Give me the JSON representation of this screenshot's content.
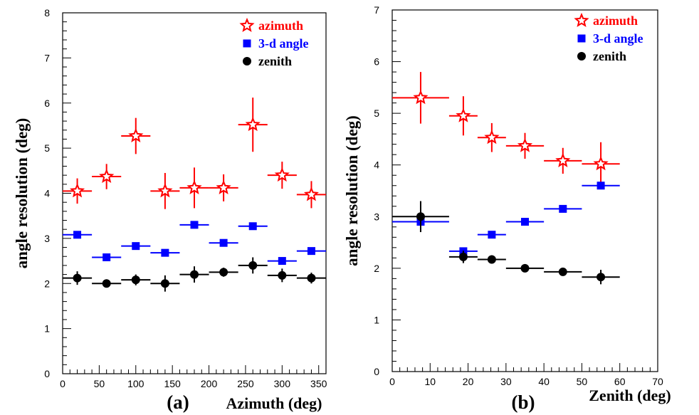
{
  "chart_data": [
    {
      "type": "scatter",
      "panel_label": "(a)",
      "xlabel": "Azimuth (deg)",
      "ylabel": "angle resolution (deg)",
      "xlim": [
        0,
        360
      ],
      "ylim": [
        0,
        8
      ],
      "xticks": [
        0,
        50,
        100,
        150,
        200,
        250,
        300,
        350
      ],
      "yticks": [
        0,
        1,
        2,
        3,
        4,
        5,
        6,
        7,
        8
      ],
      "legend_position": "top-right",
      "series": [
        {
          "name": "azimuth",
          "marker": "star",
          "color": "#ff0000",
          "x": [
            20,
            60,
            100,
            140,
            180,
            220,
            260,
            300,
            340
          ],
          "xerr": [
            20,
            20,
            20,
            20,
            20,
            20,
            20,
            20,
            20
          ],
          "y": [
            4.05,
            4.37,
            5.27,
            4.05,
            4.12,
            4.12,
            5.52,
            4.4,
            3.97
          ],
          "yerr": [
            0.28,
            0.28,
            0.4,
            0.4,
            0.45,
            0.3,
            0.6,
            0.3,
            0.3
          ]
        },
        {
          "name": "3-d angle",
          "marker": "square",
          "color": "#0000ff",
          "x": [
            20,
            60,
            100,
            140,
            180,
            220,
            260,
            300,
            340
          ],
          "xerr": [
            20,
            20,
            20,
            20,
            20,
            20,
            20,
            20,
            20
          ],
          "y": [
            3.08,
            2.58,
            2.83,
            2.68,
            3.3,
            2.9,
            3.27,
            2.5,
            2.72
          ],
          "yerr": [
            0,
            0,
            0,
            0,
            0,
            0,
            0,
            0,
            0
          ]
        },
        {
          "name": "zenith",
          "marker": "circle",
          "color": "#000000",
          "x": [
            20,
            60,
            100,
            140,
            180,
            220,
            260,
            300,
            340
          ],
          "xerr": [
            20,
            20,
            20,
            20,
            20,
            20,
            20,
            20,
            20
          ],
          "y": [
            2.12,
            2.0,
            2.08,
            2.0,
            2.2,
            2.25,
            2.4,
            2.18,
            2.12
          ],
          "yerr": [
            0.15,
            0.05,
            0.12,
            0.18,
            0.18,
            0.1,
            0.18,
            0.15,
            0.12
          ]
        }
      ]
    },
    {
      "type": "scatter",
      "panel_label": "(b)",
      "xlabel": "Zenith (deg)",
      "ylabel": "angle resolution (deg)",
      "xlim": [
        0,
        70
      ],
      "ylim": [
        0,
        7
      ],
      "xticks": [
        0,
        10,
        20,
        30,
        40,
        50,
        60,
        70
      ],
      "yticks": [
        0,
        1,
        2,
        3,
        4,
        5,
        6,
        7
      ],
      "legend_position": "top-right",
      "series": [
        {
          "name": "azimuth",
          "marker": "star",
          "color": "#ff0000",
          "x": [
            7.5,
            18.75,
            26.25,
            35,
            45,
            55
          ],
          "xerr": [
            7.5,
            3.75,
            3.75,
            5,
            5,
            5
          ],
          "y": [
            5.3,
            4.95,
            4.53,
            4.37,
            4.08,
            4.02
          ],
          "yerr": [
            0.5,
            0.38,
            0.28,
            0.25,
            0.25,
            0.42
          ]
        },
        {
          "name": "3-d angle",
          "marker": "square",
          "color": "#0000ff",
          "x": [
            7.5,
            18.75,
            26.25,
            35,
            45,
            55
          ],
          "xerr": [
            7.5,
            3.75,
            3.75,
            5,
            5,
            5
          ],
          "y": [
            2.9,
            2.33,
            2.65,
            2.9,
            3.15,
            3.6
          ],
          "yerr": [
            0,
            0,
            0,
            0,
            0,
            0
          ]
        },
        {
          "name": "zenith",
          "marker": "circle",
          "color": "#000000",
          "x": [
            7.5,
            18.75,
            26.25,
            35,
            45,
            55
          ],
          "xerr": [
            7.5,
            3.75,
            3.75,
            5,
            5,
            5
          ],
          "y": [
            3.0,
            2.22,
            2.17,
            2.0,
            1.93,
            1.83
          ],
          "yerr": [
            0.3,
            0.12,
            0.08,
            0.04,
            0.04,
            0.14
          ]
        }
      ]
    }
  ]
}
